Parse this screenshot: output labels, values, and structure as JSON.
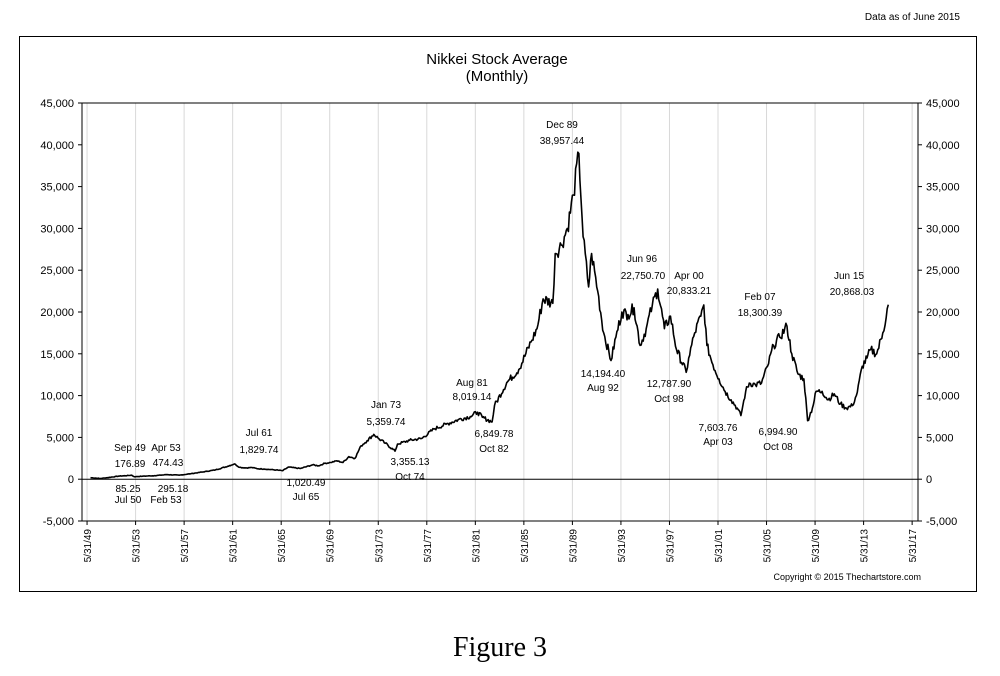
{
  "header_note": "Data as of June 2015",
  "copyright": "Copyright © 2015 Thechartstore.com",
  "caption": "Figure 3",
  "chart_data": {
    "type": "line",
    "title": "Nikkei Stock Average",
    "subtitle": "(Monthly)",
    "xlabel": "",
    "ylabel": "",
    "xlim": [
      1949.0,
      2017.9
    ],
    "ylim": [
      -5000,
      45000
    ],
    "y_ticks": [
      -5000,
      0,
      5000,
      10000,
      15000,
      20000,
      25000,
      30000,
      35000,
      40000,
      45000
    ],
    "y_tick_labels": [
      "-5,000",
      "0",
      "5,000",
      "10,000",
      "15,000",
      "20,000",
      "25,000",
      "30,000",
      "35,000",
      "40,000",
      "45,000"
    ],
    "x_tick_labels": [
      "5/31/49",
      "5/31/53",
      "5/31/57",
      "5/31/61",
      "5/31/65",
      "5/31/69",
      "5/31/73",
      "5/31/77",
      "5/31/81",
      "5/31/85",
      "5/31/89",
      "5/31/93",
      "5/31/97",
      "5/31/01",
      "5/31/05",
      "5/31/09",
      "5/31/13",
      "5/31/17"
    ],
    "grid": "vertical",
    "y_axis_both_sides": true,
    "series": [
      {
        "x": [
          1949.7,
          1950.5,
          1951.0,
          1952.0,
          1953.1,
          1953.3,
          1954.0,
          1955.0,
          1956.0,
          1957.0,
          1958.0,
          1959.0,
          1960.0,
          1961.0,
          1961.55,
          1962.0,
          1962.5,
          1963.0,
          1963.5,
          1964.0,
          1965.0,
          1965.55,
          1966.0,
          1967.0,
          1968.0,
          1968.5,
          1969.0,
          1969.5,
          1970.0,
          1970.5,
          1971.0,
          1971.5,
          1972.0,
          1972.5,
          1973.05,
          1973.5,
          1974.0,
          1974.8,
          1975.0,
          1976.0,
          1977.0,
          1978.0,
          1979.0,
          1980.0,
          1981.0,
          1981.6,
          1982.0,
          1982.8,
          1983.0,
          1984.0,
          1985.0,
          1986.0,
          1986.5,
          1987.0,
          1987.8,
          1988.0,
          1988.5,
          1989.0,
          1989.5,
          1989.95,
          1990.3,
          1990.75,
          1991.0,
          1991.5,
          1992.0,
          1992.6,
          1993.0,
          1993.5,
          1994.0,
          1994.5,
          1995.0,
          1995.5,
          1996.0,
          1996.45,
          1997.0,
          1997.5,
          1998.0,
          1998.8,
          1999.0,
          1999.5,
          2000.0,
          2000.25,
          2000.5,
          2001.0,
          2001.5,
          2002.0,
          2002.5,
          2003.0,
          2003.3,
          2003.7,
          2004.0,
          2004.5,
          2005.0,
          2005.5,
          2006.0,
          2006.5,
          2007.1,
          2007.5,
          2008.0,
          2008.5,
          2008.8,
          2009.2,
          2009.5,
          2010.0,
          2010.5,
          2011.0,
          2011.5,
          2012.0,
          2012.5,
          2012.9,
          2013.3,
          2013.7,
          2014.0,
          2014.5,
          2015.0,
          2015.45
        ],
        "values": [
          176.89,
          85.25,
          166,
          362,
          474.43,
          295.18,
          356,
          425,
          549,
          474,
          666,
          874,
          1117,
          1540,
          1829.74,
          1420,
          1350,
          1400,
          1250,
          1216,
          1100,
          1020.49,
          1450,
          1283,
          1714,
          1600,
          1900,
          2000,
          2200,
          2000,
          2700,
          2500,
          4000,
          4600,
          5359.74,
          4800,
          4300,
          3355.13,
          4200,
          4650,
          4866,
          6001,
          6569,
          7116,
          7500,
          8019.14,
          7400,
          6849.78,
          8800,
          11543,
          13113,
          16401,
          18000,
          21564,
          21036,
          27000,
          28000,
          30000,
          34000,
          38957.44,
          29000,
          23000,
          27000,
          22500,
          17500,
          14194.4,
          17000,
          20000,
          19700,
          20500,
          16000,
          18000,
          20800,
          22750.7,
          18000,
          19500,
          15500,
          12787.9,
          14500,
          17500,
          19500,
          20833.21,
          16000,
          13700,
          12000,
          10500,
          9500,
          8500,
          7603.76,
          10500,
          11500,
          11300,
          11500,
          13500,
          16000,
          17000,
          18300.39,
          15000,
          12600,
          12000,
          6994.9,
          8500,
          10500,
          10500,
          9500,
          10200,
          9000,
          8500,
          8800,
          10400,
          13500,
          14500,
          15500,
          15000,
          17500,
          20868.03
        ]
      }
    ],
    "annotations": [
      {
        "date": "Sep 49",
        "value": "176.89"
      },
      {
        "date": "Jul 50",
        "value": "85.25"
      },
      {
        "date": "Apr 53",
        "value": "474.43"
      },
      {
        "date": "Feb 53",
        "value": "295.18"
      },
      {
        "date": "Jul 61",
        "value": "1,829.74"
      },
      {
        "date": "Jul 65",
        "value": "1,020.49"
      },
      {
        "date": "Jan 73",
        "value": "5,359.74"
      },
      {
        "date": "Oct 74",
        "value": "3,355.13"
      },
      {
        "date": "Aug 81",
        "value": "8,019.14"
      },
      {
        "date": "Oct 82",
        "value": "6,849.78"
      },
      {
        "date": "Dec 89",
        "value": "38,957.44"
      },
      {
        "date": "Aug 92",
        "value": "14,194.40"
      },
      {
        "date": "Jun 96",
        "value": "22,750.70"
      },
      {
        "date": "Apr 00",
        "value": "20,833.21"
      },
      {
        "date": "Oct 98",
        "value": "12,787.90"
      },
      {
        "date": "Apr 03",
        "value": "7,603.76"
      },
      {
        "date": "Feb 07",
        "value": "18,300.39"
      },
      {
        "date": "Oct 08",
        "value": "6,994.90"
      },
      {
        "date": "Jun 15",
        "value": "20,868.03"
      }
    ]
  }
}
